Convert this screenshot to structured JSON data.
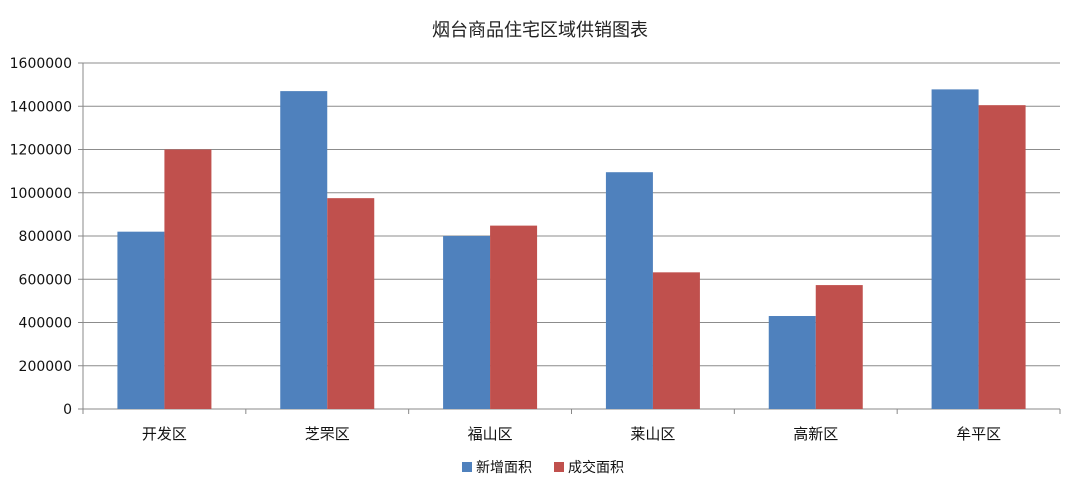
{
  "chart_data": {
    "type": "bar",
    "title": "烟台商品住宅区域供销图表",
    "categories": [
      "开发区",
      "芝罘区",
      "福山区",
      "莱山区",
      "高新区",
      "牟平区"
    ],
    "series": [
      {
        "name": "新增面积",
        "color": "#4F81BD",
        "values": [
          820000,
          1470000,
          800000,
          1095000,
          430000,
          1478000
        ]
      },
      {
        "name": "成交面积",
        "color": "#C0504D",
        "values": [
          1200000,
          975000,
          848000,
          632000,
          573000,
          1405000
        ]
      }
    ],
    "y_ticks": [
      "0",
      "200000",
      "400000",
      "600000",
      "800000",
      "1000000",
      "1200000",
      "1400000",
      "1600000"
    ],
    "ylim": [
      0,
      1600000
    ],
    "grid": true,
    "legend": "bottom"
  }
}
